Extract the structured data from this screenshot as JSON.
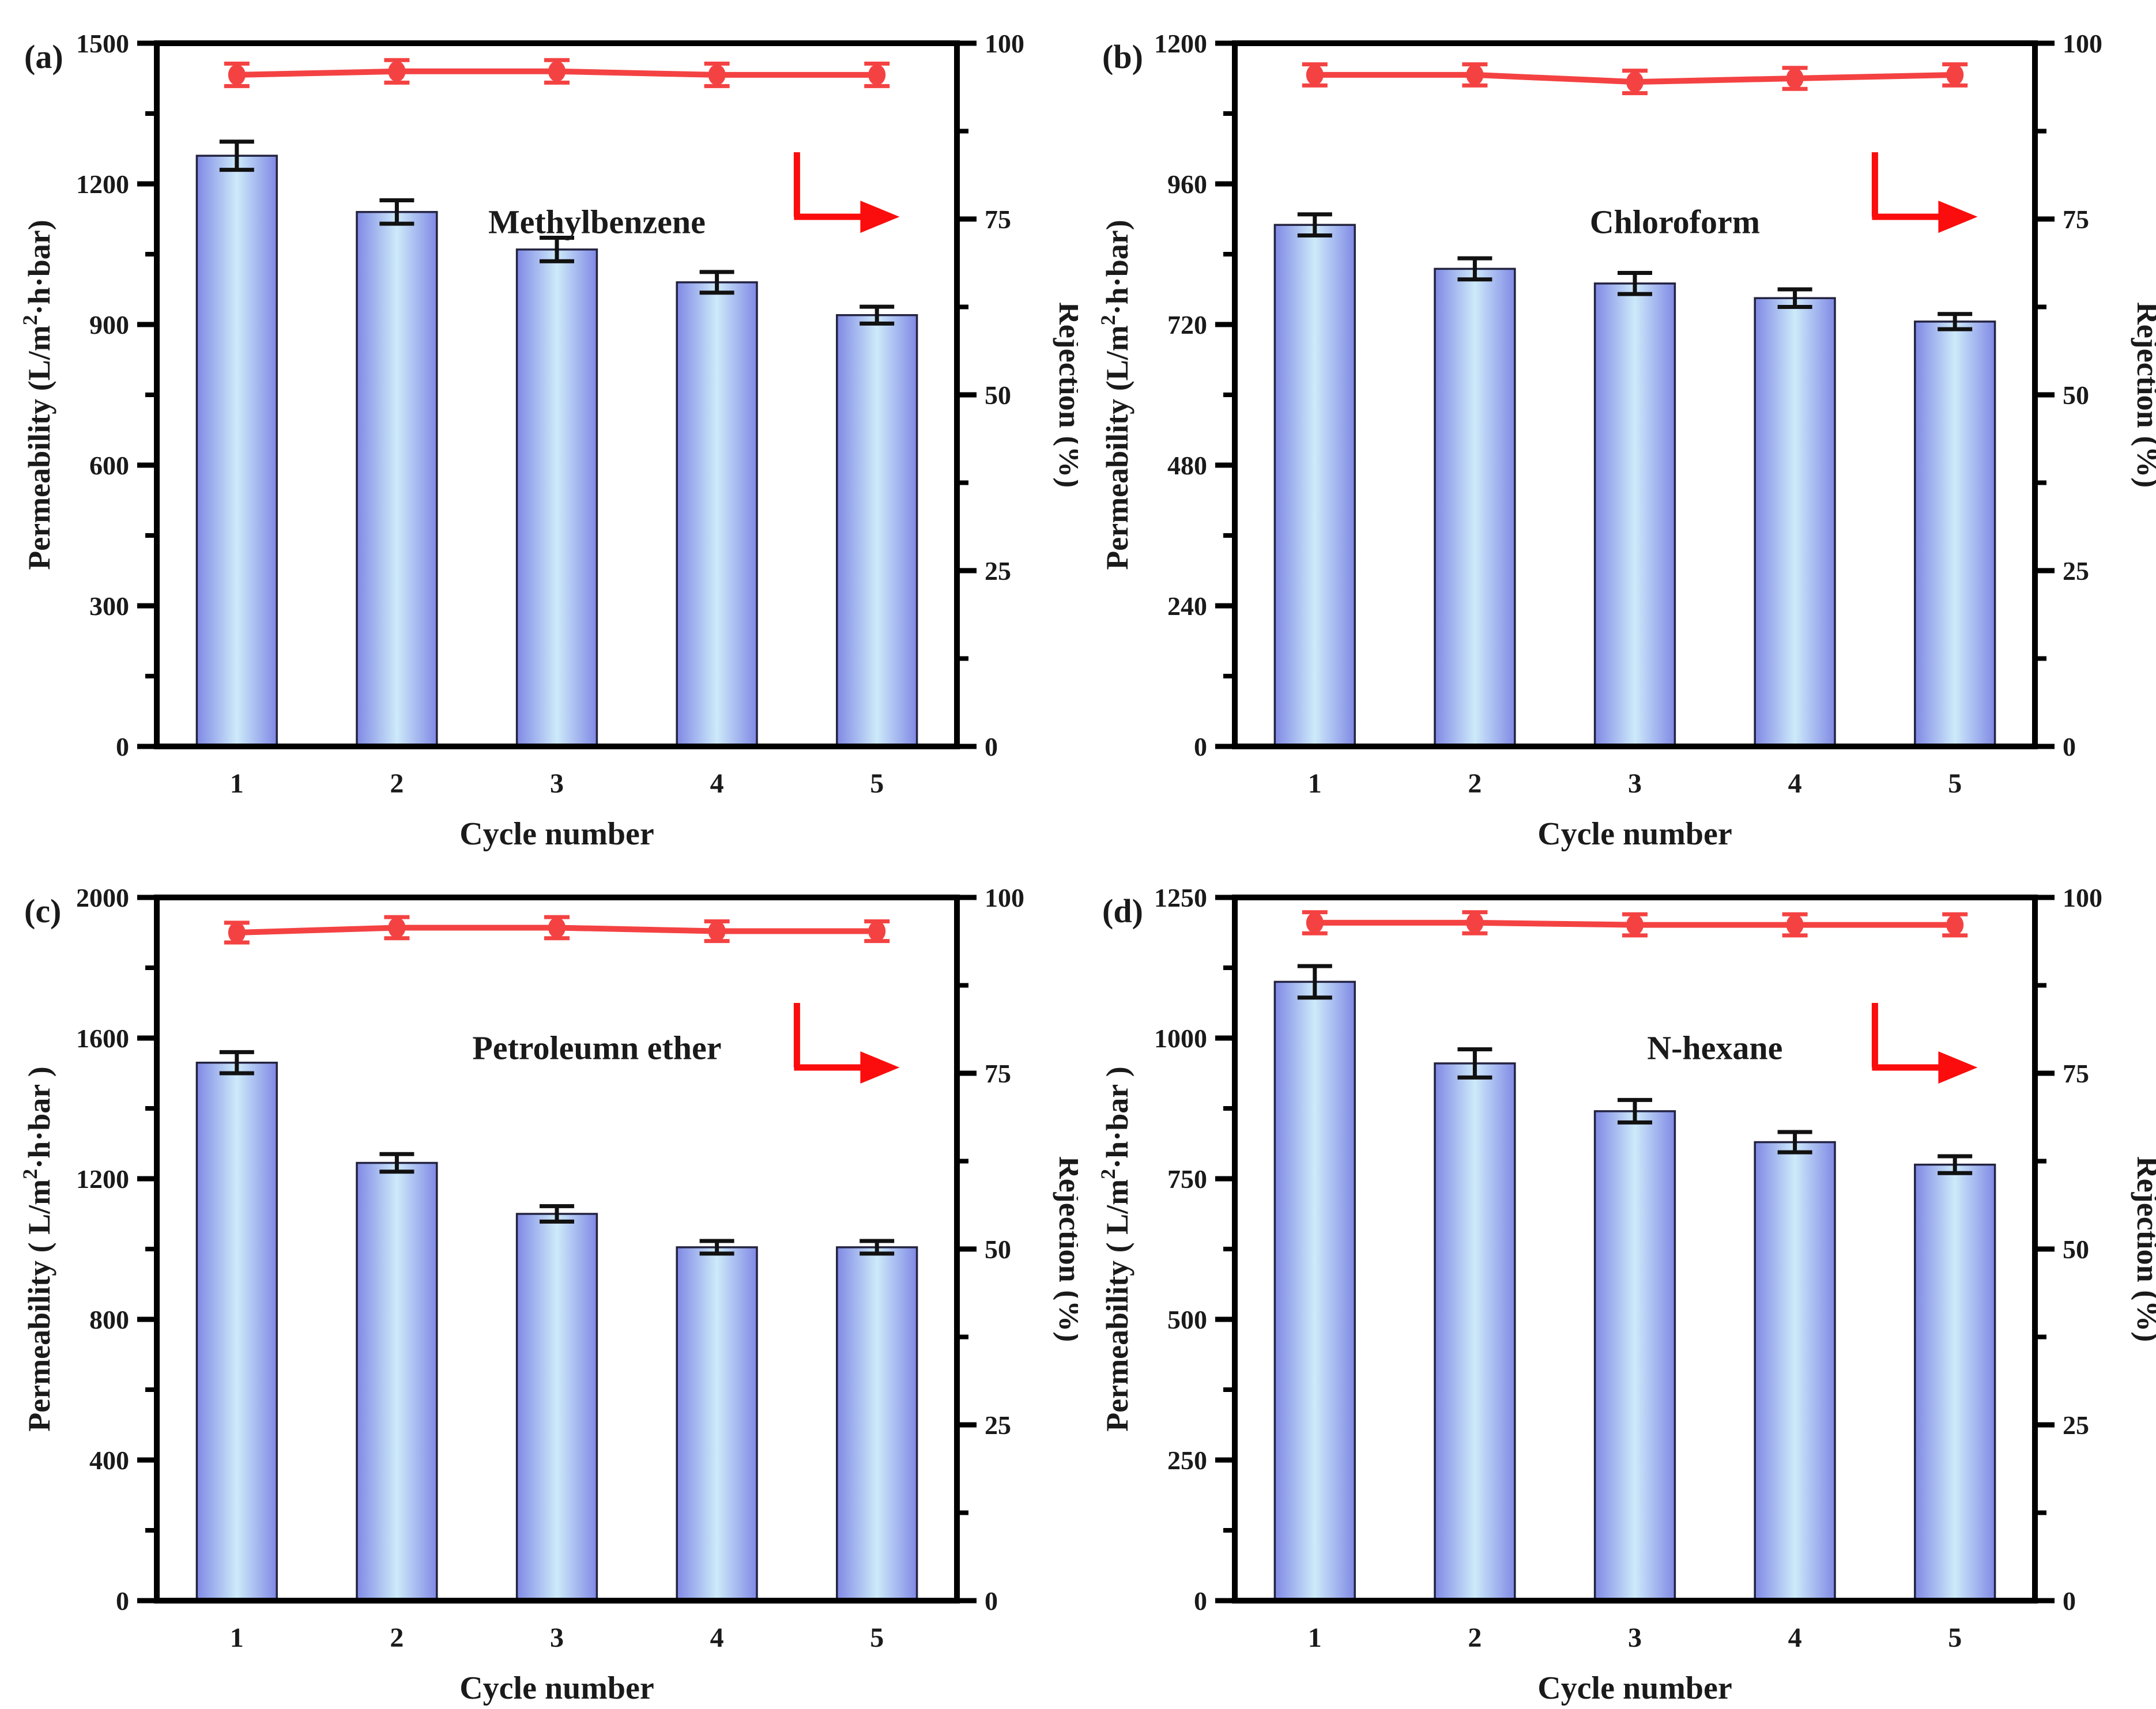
{
  "figure": {
    "x_axis_label": "Cycle number",
    "right_axis_label": "Rejection (%)",
    "left_axis_label": {
      "normal": {
        "prefix": "Permeability (L/m",
        "sup": "2",
        "suffix": "·h·bar)"
      },
      "wide": {
        "prefix": "Permeability ( L/m",
        "sup": "2",
        "suffix": "·h·bar )"
      }
    },
    "colors": {
      "bar_edge": "#8089e5",
      "bar_center": "#cdeafa",
      "bar_border": "#23233f",
      "error_bar": "#111111",
      "line_red": "#f44242",
      "indicator_red": "#fb0d0d",
      "axis": "#000000",
      "text": "#1a1a1a",
      "background": "#ffffff"
    }
  },
  "chart_data": [
    {
      "panel_label": "(a)",
      "type": "bar",
      "title": "Methylbenzene",
      "xlabel": "Cycle number",
      "categories": [
        "1",
        "2",
        "3",
        "4",
        "5"
      ],
      "series": [
        {
          "name": "Permeability",
          "type": "bar",
          "axis": "left",
          "values": [
            1260,
            1140,
            1060,
            990,
            920
          ],
          "errors": [
            30,
            25,
            25,
            22,
            18
          ]
        },
        {
          "name": "Rejection",
          "type": "line",
          "axis": "right",
          "values": [
            95.5,
            96,
            96,
            95.5,
            95.5
          ],
          "errors": [
            1.6,
            1.6,
            1.6,
            1.6,
            1.6
          ]
        }
      ],
      "left_axis": {
        "min": 0,
        "max": 1500,
        "step": 300
      },
      "right_axis": {
        "min": 0,
        "max": 100,
        "step": 25
      },
      "grid": false,
      "legend": "none",
      "left_label_variant": "normal",
      "title_pos": [
        0.55,
        0.27
      ],
      "indicator_pos": [
        0.8,
        0.155
      ]
    },
    {
      "panel_label": "(b)",
      "type": "bar",
      "title": "Chloroform",
      "xlabel": "Cycle number",
      "categories": [
        "1",
        "2",
        "3",
        "4",
        "5"
      ],
      "series": [
        {
          "name": "Permeability",
          "type": "bar",
          "axis": "left",
          "values": [
            890,
            815,
            790,
            765,
            725
          ],
          "errors": [
            18,
            18,
            18,
            15,
            13
          ]
        },
        {
          "name": "Rejection",
          "type": "line",
          "axis": "right",
          "values": [
            95.5,
            95.5,
            94.5,
            95,
            95.5
          ],
          "errors": [
            1.5,
            1.5,
            1.6,
            1.5,
            1.5
          ]
        }
      ],
      "left_axis": {
        "min": 0,
        "max": 1200,
        "step": 240
      },
      "right_axis": {
        "min": 0,
        "max": 100,
        "step": 25
      },
      "grid": false,
      "legend": "none",
      "left_label_variant": "normal",
      "title_pos": [
        0.55,
        0.27
      ],
      "indicator_pos": [
        0.8,
        0.155
      ]
    },
    {
      "panel_label": "(c)",
      "type": "bar",
      "title": "Petroleumn ether",
      "xlabel": "Cycle number",
      "categories": [
        "1",
        "2",
        "3",
        "4",
        "5"
      ],
      "series": [
        {
          "name": "Permeability",
          "type": "bar",
          "axis": "left",
          "values": [
            1530,
            1245,
            1100,
            1005,
            1005
          ],
          "errors": [
            30,
            25,
            22,
            18,
            18
          ]
        },
        {
          "name": "Rejection",
          "type": "line",
          "axis": "right",
          "values": [
            95,
            95.7,
            95.7,
            95.2,
            95.2
          ],
          "errors": [
            1.4,
            1.5,
            1.5,
            1.4,
            1.4
          ]
        }
      ],
      "left_axis": {
        "min": 0,
        "max": 2000,
        "step": 400
      },
      "right_axis": {
        "min": 0,
        "max": 100,
        "step": 25
      },
      "grid": false,
      "legend": "none",
      "left_label_variant": "wide",
      "title_pos": [
        0.55,
        0.23
      ],
      "indicator_pos": [
        0.8,
        0.15
      ]
    },
    {
      "panel_label": "(d)",
      "type": "bar",
      "title": "N-hexane",
      "xlabel": "Cycle number",
      "categories": [
        "1",
        "2",
        "3",
        "4",
        "5"
      ],
      "series": [
        {
          "name": "Permeability",
          "type": "bar",
          "axis": "left",
          "values": [
            1100,
            955,
            870,
            815,
            775
          ],
          "errors": [
            28,
            25,
            20,
            18,
            15
          ]
        },
        {
          "name": "Rejection",
          "type": "line",
          "axis": "right",
          "values": [
            96.4,
            96.4,
            96.1,
            96.1,
            96.1
          ],
          "errors": [
            1.5,
            1.5,
            1.5,
            1.5,
            1.5
          ]
        }
      ],
      "left_axis": {
        "min": 0,
        "max": 1250,
        "step": 250
      },
      "right_axis": {
        "min": 0,
        "max": 100,
        "step": 25
      },
      "grid": false,
      "legend": "none",
      "left_label_variant": "wide",
      "title_pos": [
        0.6,
        0.23
      ],
      "indicator_pos": [
        0.8,
        0.15
      ]
    }
  ]
}
